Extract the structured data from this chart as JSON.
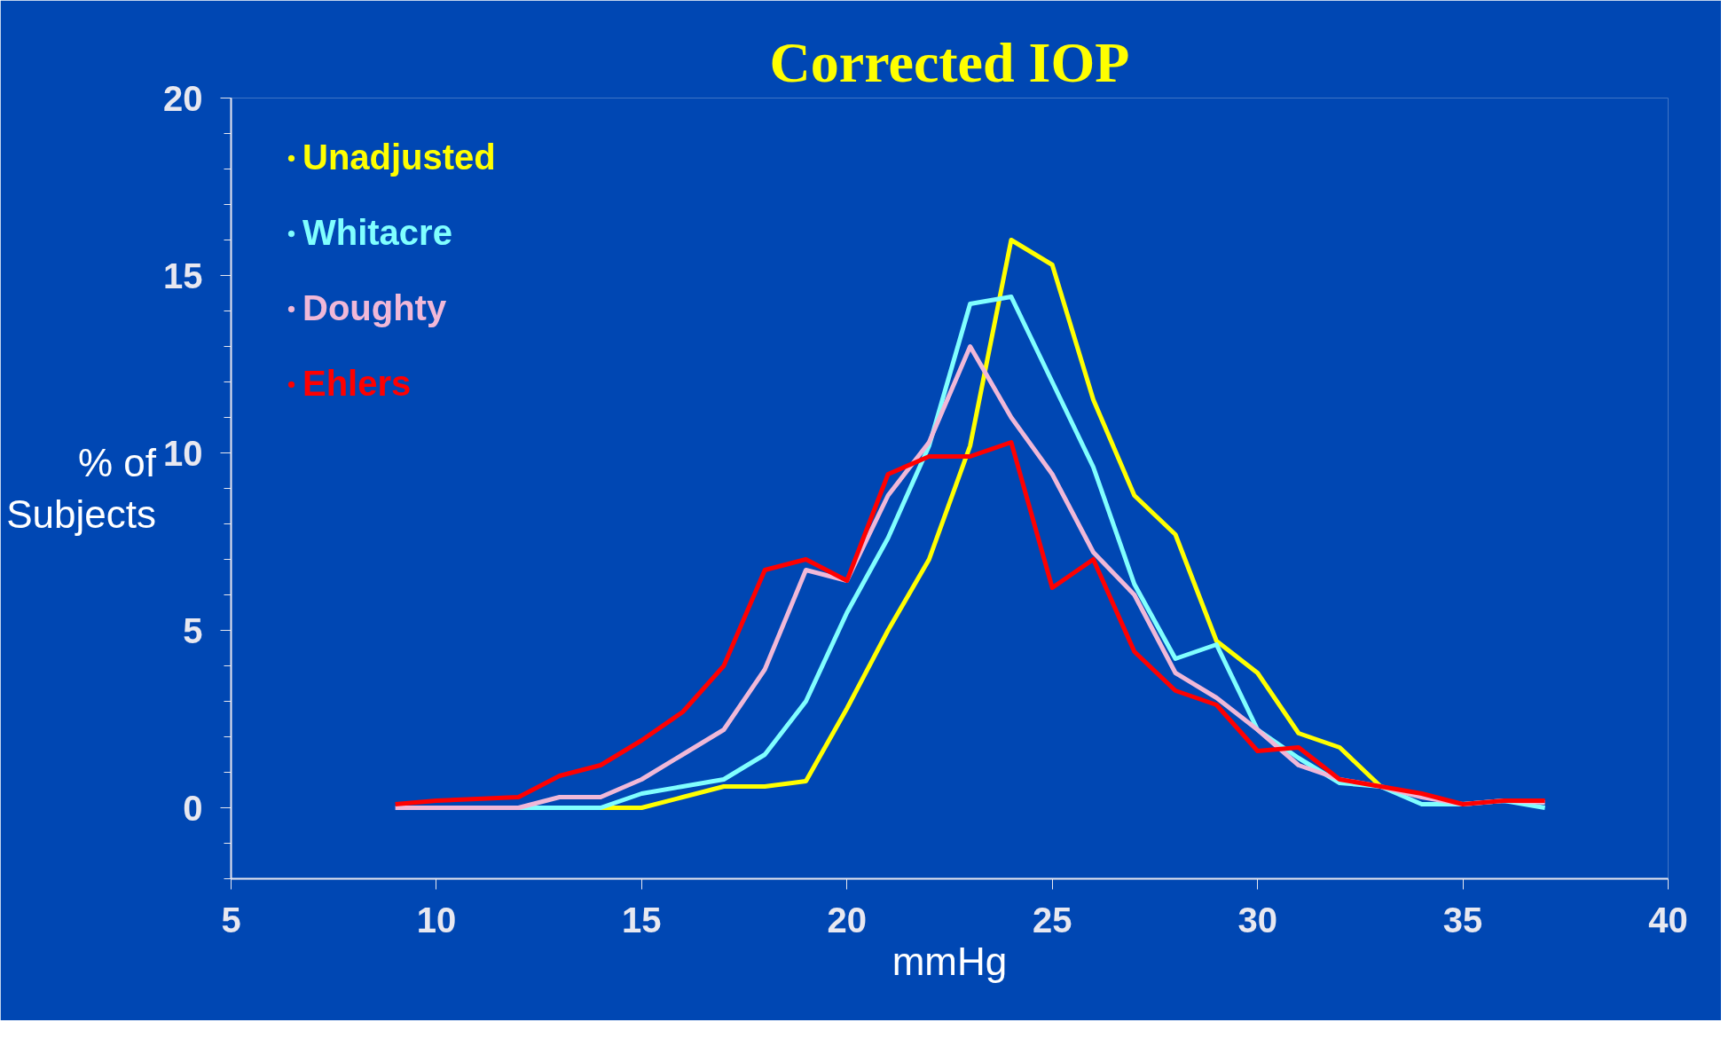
{
  "chart_data": {
    "type": "line",
    "title": "Corrected IOP",
    "xlabel": "mmHg",
    "ylabel": "% of\nSubjects",
    "x": [
      9,
      10,
      11,
      12,
      13,
      14,
      15,
      16,
      17,
      18,
      19,
      20,
      21,
      22,
      23,
      24,
      25,
      26,
      27,
      28,
      29,
      30,
      31,
      32,
      33,
      34,
      35,
      36,
      37
    ],
    "series": [
      {
        "name": "Unadjusted",
        "color": "#ffff00",
        "values": [
          null,
          null,
          null,
          null,
          0,
          0,
          0,
          0.3,
          0.6,
          0.6,
          0.75,
          2.8,
          5.0,
          7.0,
          10.2,
          16.0,
          15.3,
          11.5,
          8.8,
          7.7,
          4.7,
          3.8,
          2.1,
          1.7,
          0.6,
          null,
          null,
          null,
          null
        ]
      },
      {
        "name": "Whitacre",
        "color": "#80ffff",
        "values": [
          null,
          null,
          0,
          0,
          0,
          0,
          0.4,
          0.6,
          0.8,
          1.5,
          3.0,
          5.5,
          7.6,
          10.2,
          14.2,
          14.4,
          12.0,
          9.6,
          6.3,
          4.2,
          4.6,
          2.2,
          1.4,
          0.7,
          0.6,
          0.1,
          0.1,
          0.2,
          0
        ]
      },
      {
        "name": "Doughty",
        "color": "#f0b8d8",
        "values": [
          0,
          0,
          0,
          0,
          0.3,
          0.3,
          0.8,
          1.5,
          2.2,
          3.9,
          6.7,
          6.4,
          8.8,
          10.3,
          13.0,
          11.0,
          9.4,
          7.2,
          6.0,
          3.8,
          3.1,
          2.2,
          1.2,
          0.8,
          0.6,
          0.3,
          0.1,
          0.2,
          0.15
        ]
      },
      {
        "name": "Ehlers",
        "color": "#ff0000",
        "values": [
          0.1,
          0.2,
          0.25,
          0.3,
          0.9,
          1.2,
          1.9,
          2.7,
          4.0,
          6.7,
          7.0,
          6.4,
          9.4,
          9.9,
          9.9,
          10.3,
          6.2,
          7.0,
          4.4,
          3.3,
          2.9,
          1.6,
          1.7,
          0.8,
          0.6,
          0.4,
          0.1,
          0.2,
          0.2
        ]
      }
    ],
    "xlim": [
      5,
      40
    ],
    "xticks": [
      5,
      10,
      15,
      20,
      25,
      30,
      35,
      40
    ],
    "ylim": [
      -2,
      20
    ],
    "yticks": [
      0,
      5,
      10,
      15,
      20
    ],
    "legend": "top left",
    "grid": false
  }
}
